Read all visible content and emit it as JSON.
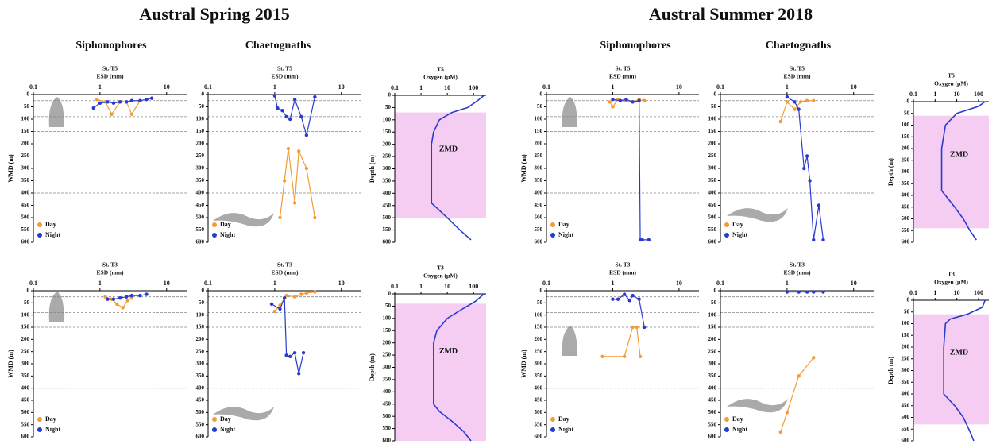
{
  "figure": {
    "titles": [
      "Austral Spring 2015",
      "Austral Summer 2018"
    ],
    "column_headers": [
      "Siphonophores",
      "Chaetognaths",
      "Siphonophores",
      "Chaetognaths"
    ]
  },
  "chart_data": [
    {
      "type": "line",
      "title": "St. T5",
      "xlabel": "ESD (mm)",
      "ylabel": "WMD (m)",
      "xscale": "log",
      "xlim": [
        0.1,
        20
      ],
      "xticks": [
        0.1,
        1,
        10
      ],
      "ylim": [
        0,
        600
      ],
      "yticks": [
        0,
        50,
        100,
        150,
        200,
        250,
        300,
        350,
        400,
        450,
        500,
        550,
        600
      ],
      "invert_y": true,
      "hlines": [
        25,
        90,
        150,
        400
      ],
      "legend": "lower left",
      "series": [
        {
          "name": "Day",
          "color": "#f39c33",
          "x": [
            0.9,
            1.2,
            1.5,
            2,
            2.5,
            3,
            4,
            5
          ],
          "values": [
            20,
            30,
            80,
            30,
            30,
            80,
            25,
            20
          ]
        },
        {
          "name": "Night",
          "color": "#2a3ad0",
          "x": [
            0.8,
            1,
            1.3,
            1.6,
            2,
            2.5,
            3,
            4,
            5,
            6
          ],
          "values": [
            55,
            35,
            30,
            35,
            30,
            30,
            25,
            25,
            20,
            15
          ]
        }
      ]
    },
    {
      "type": "line",
      "title": "St. T5",
      "xlabel": "ESD (mm)",
      "xscale": "log",
      "xlim": [
        0.1,
        20
      ],
      "xticks": [
        0.1,
        1,
        10
      ],
      "ylim": [
        0,
        600
      ],
      "yticks": [
        0,
        50,
        100,
        150,
        200,
        250,
        300,
        350,
        400,
        450,
        500,
        550,
        600
      ],
      "invert_y": true,
      "hlines": [
        25,
        90,
        150,
        400
      ],
      "legend": "lower left",
      "series": [
        {
          "name": "Day",
          "color": "#f39c33",
          "x": [
            1.2,
            1.4,
            1.6,
            2,
            2.3,
            3,
            4
          ],
          "values": [
            500,
            350,
            220,
            440,
            230,
            300,
            500
          ]
        },
        {
          "name": "Night",
          "color": "#2a3ad0",
          "x": [
            1,
            1.1,
            1.3,
            1.5,
            1.7,
            2,
            2.5,
            3,
            4
          ],
          "values": [
            5,
            55,
            65,
            90,
            100,
            20,
            90,
            165,
            10
          ]
        }
      ]
    },
    {
      "type": "line",
      "title": "T5",
      "xlabel": "Oxygen (µM)",
      "ylabel": "Depth (m)",
      "xscale": "log",
      "xlim": [
        0.1,
        300
      ],
      "xticks": [
        0.1,
        1,
        10,
        100
      ],
      "ylim": [
        0,
        600
      ],
      "yticks": [
        0,
        50,
        100,
        150,
        200,
        250,
        300,
        350,
        400,
        450,
        500,
        550,
        600
      ],
      "invert_y": true,
      "region": {
        "label": "ZMD",
        "range": [
          70,
          500
        ],
        "color": "#f5cdf2"
      },
      "series": [
        {
          "color": "#2a3ad0",
          "x": [
            250,
            150,
            60,
            15,
            5,
            3,
            2.5,
            2.5,
            2.5,
            2.5,
            4,
            10,
            30,
            80
          ],
          "values": [
            0,
            20,
            50,
            70,
            100,
            150,
            200,
            300,
            400,
            440,
            460,
            500,
            550,
            590
          ]
        }
      ]
    },
    {
      "type": "line",
      "title": "St. T3",
      "xlabel": "ESD (mm)",
      "ylabel": "WMD (m)",
      "xscale": "log",
      "xlim": [
        0.1,
        20
      ],
      "xticks": [
        0.1,
        1,
        10
      ],
      "ylim": [
        0,
        600
      ],
      "yticks": [
        0,
        50,
        100,
        150,
        200,
        250,
        300,
        350,
        400,
        450,
        500,
        550,
        600
      ],
      "invert_y": true,
      "hlines": [
        25,
        90,
        150,
        400
      ],
      "legend": "lower left",
      "series": [
        {
          "name": "Day",
          "color": "#f39c33",
          "x": [
            1.2,
            1.5,
            1.8,
            2.2,
            2.6,
            3
          ],
          "values": [
            25,
            35,
            55,
            70,
            40,
            30
          ]
        },
        {
          "name": "Night",
          "color": "#2a3ad0",
          "x": [
            1.3,
            1.6,
            2,
            2.5,
            3,
            4,
            5
          ],
          "values": [
            35,
            35,
            30,
            25,
            20,
            20,
            15
          ]
        }
      ]
    },
    {
      "type": "line",
      "title": "St. T3",
      "xlabel": "ESD (mm)",
      "xscale": "log",
      "xlim": [
        0.1,
        20
      ],
      "xticks": [
        0.1,
        1,
        10
      ],
      "ylim": [
        0,
        600
      ],
      "yticks": [
        0,
        50,
        100,
        150,
        200,
        250,
        300,
        350,
        400,
        450,
        500,
        550,
        600
      ],
      "invert_y": true,
      "hlines": [
        25,
        90,
        150,
        400
      ],
      "legend": "lower left",
      "series": [
        {
          "name": "Day",
          "color": "#f39c33",
          "x": [
            1,
            1.2,
            1.5,
            2,
            2.5,
            3,
            4
          ],
          "values": [
            85,
            60,
            20,
            25,
            15,
            10,
            5
          ]
        },
        {
          "name": "Night",
          "color": "#2a3ad0",
          "x": [
            0.9,
            1.2,
            1.4,
            1.5,
            1.7,
            2,
            2.3,
            2.7
          ],
          "values": [
            55,
            75,
            30,
            265,
            270,
            255,
            340,
            255
          ]
        }
      ]
    },
    {
      "type": "line",
      "title": "T3",
      "xlabel": "Oxygen (µM)",
      "ylabel": "Depth (m)",
      "xscale": "log",
      "xlim": [
        0.1,
        300
      ],
      "xticks": [
        0.1,
        1,
        10,
        100
      ],
      "ylim": [
        0,
        600
      ],
      "yticks": [
        0,
        50,
        100,
        150,
        200,
        250,
        300,
        350,
        400,
        450,
        500,
        550,
        600
      ],
      "invert_y": true,
      "region": {
        "label": "ZMD",
        "range": [
          40,
          600
        ],
        "color": "#f5cdf2"
      },
      "series": [
        {
          "color": "#2a3ad0",
          "x": [
            250,
            120,
            40,
            10,
            4,
            3,
            3,
            3,
            3,
            5,
            15,
            40,
            80
          ],
          "values": [
            0,
            30,
            60,
            100,
            150,
            200,
            300,
            400,
            450,
            480,
            520,
            560,
            600
          ]
        }
      ]
    },
    {
      "type": "line",
      "title": "St. T5",
      "xlabel": "ESD (mm)",
      "ylabel": "WMD (m)",
      "xscale": "log",
      "xlim": [
        0.1,
        20
      ],
      "xticks": [
        0.1,
        1,
        10
      ],
      "ylim": [
        0,
        600
      ],
      "yticks": [
        0,
        50,
        100,
        150,
        200,
        250,
        300,
        350,
        400,
        450,
        500,
        550,
        600
      ],
      "invert_y": true,
      "hlines": [
        25,
        90,
        150,
        400
      ],
      "legend": "lower left",
      "series": [
        {
          "name": "Day",
          "color": "#f39c33",
          "x": [
            0.9,
            1,
            1.2,
            1.5,
            2,
            2.5,
            3
          ],
          "values": [
            30,
            50,
            20,
            25,
            30,
            20,
            25
          ]
        },
        {
          "name": "Night",
          "color": "#2a3ad0",
          "x": [
            1,
            1.3,
            1.6,
            2,
            2.5,
            2.6,
            2.8,
            3.5
          ],
          "values": [
            20,
            25,
            20,
            30,
            25,
            590,
            590,
            590
          ]
        }
      ]
    },
    {
      "type": "line",
      "title": "St. T5",
      "xlabel": "ESD (mm)",
      "xscale": "log",
      "xlim": [
        0.1,
        20
      ],
      "xticks": [
        0.1,
        1,
        10
      ],
      "ylim": [
        0,
        600
      ],
      "yticks": [
        0,
        50,
        100,
        150,
        200,
        250,
        300,
        350,
        400,
        450,
        500,
        550,
        600
      ],
      "invert_y": true,
      "hlines": [
        25,
        90,
        150,
        400
      ],
      "legend": "lower left",
      "series": [
        {
          "name": "Day",
          "color": "#f39c33",
          "x": [
            0.8,
            1,
            1.3,
            1.6,
            2,
            2.5
          ],
          "values": [
            110,
            30,
            60,
            30,
            25,
            25
          ]
        },
        {
          "name": "Night",
          "color": "#2a3ad0",
          "x": [
            1,
            1.3,
            1.5,
            1.8,
            2,
            2.2,
            2.5,
            3,
            3.5
          ],
          "values": [
            10,
            30,
            60,
            300,
            250,
            350,
            590,
            450,
            590
          ]
        }
      ]
    },
    {
      "type": "line",
      "title": "T5",
      "xlabel": "Oxygen (µM)",
      "ylabel": "Depth (m)",
      "xscale": "log",
      "xlim": [
        0.1,
        300
      ],
      "xticks": [
        0.1,
        1,
        10,
        100
      ],
      "ylim": [
        0,
        600
      ],
      "yticks": [
        0,
        50,
        100,
        150,
        200,
        250,
        300,
        350,
        400,
        450,
        500,
        550,
        600
      ],
      "invert_y": true,
      "region": {
        "label": "ZMD",
        "range": [
          60,
          540
        ],
        "color": "#f5cdf2"
      },
      "series": [
        {
          "color": "#2a3ad0",
          "x": [
            200,
            100,
            10,
            3,
            2,
            2,
            2,
            3,
            8,
            20,
            40,
            80
          ],
          "values": [
            0,
            20,
            50,
            100,
            200,
            300,
            380,
            400,
            450,
            500,
            550,
            590
          ]
        }
      ]
    },
    {
      "type": "line",
      "title": "St. T3",
      "xlabel": "ESD (mm)",
      "ylabel": "WMD (m)",
      "xscale": "log",
      "xlim": [
        0.1,
        20
      ],
      "xticks": [
        0.1,
        1,
        10
      ],
      "ylim": [
        0,
        600
      ],
      "yticks": [
        0,
        50,
        100,
        150,
        200,
        250,
        300,
        350,
        400,
        450,
        500,
        550,
        600
      ],
      "invert_y": true,
      "hlines": [
        25,
        90,
        150,
        400
      ],
      "legend": "lower left",
      "series": [
        {
          "name": "Day",
          "color": "#f39c33",
          "x": [
            0.7,
            1.5,
            2,
            2.3,
            2.6
          ],
          "values": [
            270,
            270,
            150,
            150,
            270
          ]
        },
        {
          "name": "Night",
          "color": "#2a3ad0",
          "x": [
            1,
            1.2,
            1.5,
            1.8,
            2,
            2.5,
            3
          ],
          "values": [
            35,
            35,
            15,
            40,
            20,
            35,
            150
          ]
        }
      ]
    },
    {
      "type": "line",
      "title": "St. T3",
      "xlabel": "ESD (mm)",
      "xscale": "log",
      "xlim": [
        0.1,
        20
      ],
      "xticks": [
        0.1,
        1,
        10
      ],
      "ylim": [
        0,
        600
      ],
      "yticks": [
        0,
        50,
        100,
        150,
        200,
        250,
        300,
        350,
        400,
        450,
        500,
        550,
        600
      ],
      "invert_y": true,
      "hlines": [
        25,
        90,
        150,
        400
      ],
      "legend": "lower left",
      "series": [
        {
          "name": "Day",
          "color": "#f39c33",
          "x": [
            0.8,
            1,
            1.5,
            2.5
          ],
          "values": [
            580,
            500,
            350,
            275
          ]
        },
        {
          "name": "Night",
          "color": "#2a3ad0",
          "x": [
            1,
            1.5,
            2,
            2.5,
            3.5
          ],
          "values": [
            5,
            5,
            5,
            5,
            5
          ]
        }
      ]
    },
    {
      "type": "line",
      "title": "T3",
      "xlabel": "Oxygen (µM)",
      "ylabel": "Depth (m)",
      "xscale": "log",
      "xlim": [
        0.1,
        300
      ],
      "xticks": [
        0.1,
        1,
        10,
        100
      ],
      "ylim": [
        0,
        600
      ],
      "yticks": [
        0,
        50,
        100,
        150,
        200,
        250,
        300,
        350,
        400,
        450,
        500,
        550,
        600
      ],
      "invert_y": true,
      "region": {
        "label": "ZMD",
        "range": [
          60,
          530
        ],
        "color": "#f5cdf2"
      },
      "series": [
        {
          "color": "#2a3ad0",
          "x": [
            200,
            150,
            30,
            5,
            3,
            2.5,
            2.5,
            8,
            20,
            40,
            60
          ],
          "values": [
            0,
            30,
            60,
            80,
            100,
            200,
            400,
            450,
            500,
            560,
            600
          ]
        }
      ]
    }
  ]
}
